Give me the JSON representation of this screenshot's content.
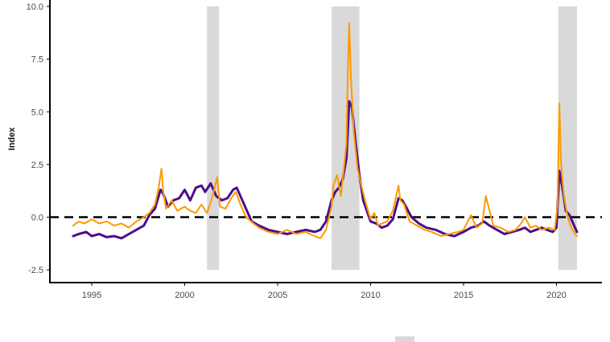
{
  "chart_data": {
    "type": "line",
    "title": "",
    "xlabel": "",
    "ylabel": "Index",
    "xlim": [
      1993.4,
      2022.3
    ],
    "ylim": [
      -2.8,
      10.0
    ],
    "x_ticks": [
      1995,
      2000,
      2005,
      2010,
      2015,
      2020
    ],
    "x_tick_labels": [
      "1995",
      "2000",
      "2005",
      "2010",
      "2015",
      "2020"
    ],
    "y_ticks": [
      10.0,
      7.5,
      5.0,
      2.5,
      0.0,
      -2.5
    ],
    "y_tick_labels": [
      "10.0",
      "7.5",
      "5.0",
      "2.5",
      "0.0",
      "-2.5"
    ],
    "grid": false,
    "reference_line": {
      "y": 0,
      "style": "dashed",
      "color": "#000000"
    },
    "recession_bands": [
      [
        2001.2,
        2001.85
      ],
      [
        2007.9,
        2009.4
      ],
      [
        2020.1,
        2021.1
      ]
    ],
    "band_color": "#d9d9d9",
    "series": [
      {
        "color": "#4b0f8a",
        "x": [
          1994.0,
          1994.3,
          1994.7,
          1995.0,
          1995.4,
          1995.8,
          1996.2,
          1996.6,
          1997.0,
          1997.4,
          1997.8,
          1998.1,
          1998.4,
          1998.7,
          1998.85,
          1999.1,
          1999.4,
          1999.7,
          2000.0,
          2000.3,
          2000.6,
          2000.9,
          2001.1,
          2001.4,
          2001.7,
          2002.0,
          2002.3,
          2002.6,
          2002.8,
          2003.0,
          2003.3,
          2003.6,
          2004.0,
          2004.5,
          2005.0,
          2005.5,
          2006.0,
          2006.5,
          2007.0,
          2007.3,
          2007.6,
          2007.9,
          2008.1,
          2008.3,
          2008.5,
          2008.7,
          2008.85,
          2009.0,
          2009.2,
          2009.4,
          2009.6,
          2009.8,
          2010.0,
          2010.3,
          2010.6,
          2010.9,
          2011.2,
          2011.5,
          2011.7,
          2011.9,
          2012.2,
          2012.6,
          2013.0,
          2013.5,
          2014.0,
          2014.5,
          2015.0,
          2015.4,
          2015.8,
          2016.1,
          2016.4,
          2016.8,
          2017.2,
          2017.6,
          2018.0,
          2018.3,
          2018.6,
          2018.9,
          2019.2,
          2019.5,
          2019.8,
          2020.0,
          2020.15,
          2020.3,
          2020.5,
          2020.7,
          2020.9,
          2021.1
        ],
        "y": [
          -0.9,
          -0.8,
          -0.7,
          -0.9,
          -0.8,
          -0.95,
          -0.9,
          -1.0,
          -0.8,
          -0.6,
          -0.4,
          0.1,
          0.4,
          1.3,
          1.1,
          0.5,
          0.8,
          0.9,
          1.3,
          0.8,
          1.4,
          1.5,
          1.2,
          1.6,
          1.0,
          0.8,
          0.9,
          1.3,
          1.4,
          1.0,
          0.4,
          -0.2,
          -0.4,
          -0.6,
          -0.7,
          -0.8,
          -0.7,
          -0.6,
          -0.7,
          -0.6,
          -0.2,
          0.8,
          1.2,
          1.4,
          1.8,
          2.8,
          5.5,
          5.2,
          3.5,
          2.0,
          0.8,
          0.3,
          -0.2,
          -0.3,
          -0.5,
          -0.4,
          -0.1,
          0.9,
          0.8,
          0.5,
          0.0,
          -0.3,
          -0.5,
          -0.6,
          -0.8,
          -0.9,
          -0.7,
          -0.5,
          -0.4,
          -0.2,
          -0.4,
          -0.6,
          -0.8,
          -0.7,
          -0.6,
          -0.5,
          -0.7,
          -0.6,
          -0.5,
          -0.6,
          -0.7,
          -0.5,
          2.2,
          1.5,
          0.3,
          0.1,
          -0.3,
          -0.7
        ]
      },
      {
        "color": "#ff9900",
        "x": [
          1994.0,
          1994.3,
          1994.6,
          1995.0,
          1995.4,
          1995.8,
          1996.2,
          1996.6,
          1997.0,
          1997.4,
          1997.8,
          1998.1,
          1998.4,
          1998.6,
          1998.75,
          1998.85,
          1999.0,
          1999.3,
          1999.6,
          2000.0,
          2000.3,
          2000.6,
          2000.9,
          2001.2,
          2001.5,
          2001.75,
          2001.9,
          2002.2,
          2002.5,
          2002.75,
          2003.0,
          2003.3,
          2003.7,
          2004.0,
          2004.5,
          2005.0,
          2005.5,
          2006.0,
          2006.5,
          2007.0,
          2007.3,
          2007.6,
          2007.9,
          2008.0,
          2008.2,
          2008.4,
          2008.55,
          2008.7,
          2008.78,
          2008.85,
          2008.95,
          2009.1,
          2009.3,
          2009.5,
          2009.7,
          2010.0,
          2010.2,
          2010.4,
          2010.6,
          2010.9,
          2011.2,
          2011.5,
          2011.6,
          2011.8,
          2012.1,
          2012.5,
          2012.9,
          2013.3,
          2013.8,
          2014.2,
          2014.7,
          2015.0,
          2015.4,
          2015.7,
          2016.0,
          2016.2,
          2016.6,
          2017.0,
          2017.4,
          2017.8,
          2018.1,
          2018.3,
          2018.6,
          2018.9,
          2019.2,
          2019.6,
          2019.9,
          2020.05,
          2020.15,
          2020.25,
          2020.4,
          2020.6,
          2020.8,
          2021.0,
          2021.1
        ],
        "y": [
          -0.4,
          -0.2,
          -0.3,
          -0.1,
          -0.3,
          -0.2,
          -0.4,
          -0.3,
          -0.5,
          -0.2,
          0.0,
          0.2,
          0.6,
          1.4,
          2.3,
          1.2,
          0.4,
          0.8,
          0.3,
          0.5,
          0.3,
          0.2,
          0.6,
          0.2,
          1.0,
          1.9,
          0.5,
          0.4,
          0.9,
          1.2,
          0.6,
          0.0,
          -0.3,
          -0.5,
          -0.7,
          -0.8,
          -0.6,
          -0.8,
          -0.7,
          -0.9,
          -1.0,
          -0.6,
          0.5,
          1.5,
          2.0,
          1.0,
          2.2,
          3.5,
          7.0,
          9.2,
          6.5,
          4.0,
          2.3,
          1.5,
          0.8,
          -0.1,
          0.2,
          -0.4,
          -0.3,
          -0.2,
          0.3,
          1.5,
          0.8,
          0.6,
          -0.2,
          -0.4,
          -0.6,
          -0.7,
          -0.9,
          -0.8,
          -0.7,
          -0.6,
          0.1,
          -0.5,
          -0.3,
          1.0,
          -0.4,
          -0.5,
          -0.7,
          -0.6,
          -0.3,
          0.0,
          -0.5,
          -0.4,
          -0.6,
          -0.5,
          -0.6,
          0.5,
          5.4,
          2.5,
          1.0,
          0.0,
          -0.5,
          -0.8,
          -0.9
        ]
      }
    ]
  },
  "legend": {
    "swatch_color": "#d9d9d9"
  }
}
